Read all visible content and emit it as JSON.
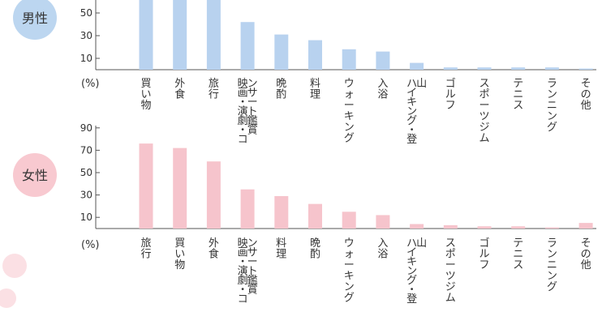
{
  "chart_data": [
    {
      "type": "bar",
      "group_label": "男性",
      "unit_label": "(%)",
      "ylim": [
        0,
        90
      ],
      "yticks": [
        "10",
        "30",
        "50"
      ],
      "categories": [
        "買い物",
        "外食",
        "旅行",
        "映画・演劇・コンサート鑑賞",
        "晩酌",
        "料理",
        "ウォーキング",
        "入浴",
        "ハイキング・登山",
        "ゴルフ",
        "スポーツジム",
        "テニス",
        "ランニング",
        "その他"
      ],
      "values": [
        72,
        70,
        68,
        42,
        31,
        26,
        18,
        16,
        6,
        2,
        2,
        2,
        2,
        1
      ],
      "color": "#b8d2ef",
      "badge_color": "#bcd6f0"
    },
    {
      "type": "bar",
      "group_label": "女性",
      "unit_label": "(%)",
      "ylim": [
        0,
        90
      ],
      "yticks": [
        "90",
        "70",
        "50",
        "30",
        "10"
      ],
      "categories": [
        "旅行",
        "買い物",
        "外食",
        "映画・演劇・コンサート鑑賞",
        "料理",
        "晩酌",
        "ウォーキング",
        "入浴",
        "ハイキング・登山",
        "スポーツジム",
        "ゴルフ",
        "テニス",
        "ランニング",
        "その他"
      ],
      "values": [
        76,
        72,
        60,
        35,
        29,
        22,
        15,
        12,
        4,
        3,
        2,
        2,
        1,
        5
      ],
      "color": "#f6c4cc",
      "badge_color": "#f8c9d0"
    }
  ]
}
